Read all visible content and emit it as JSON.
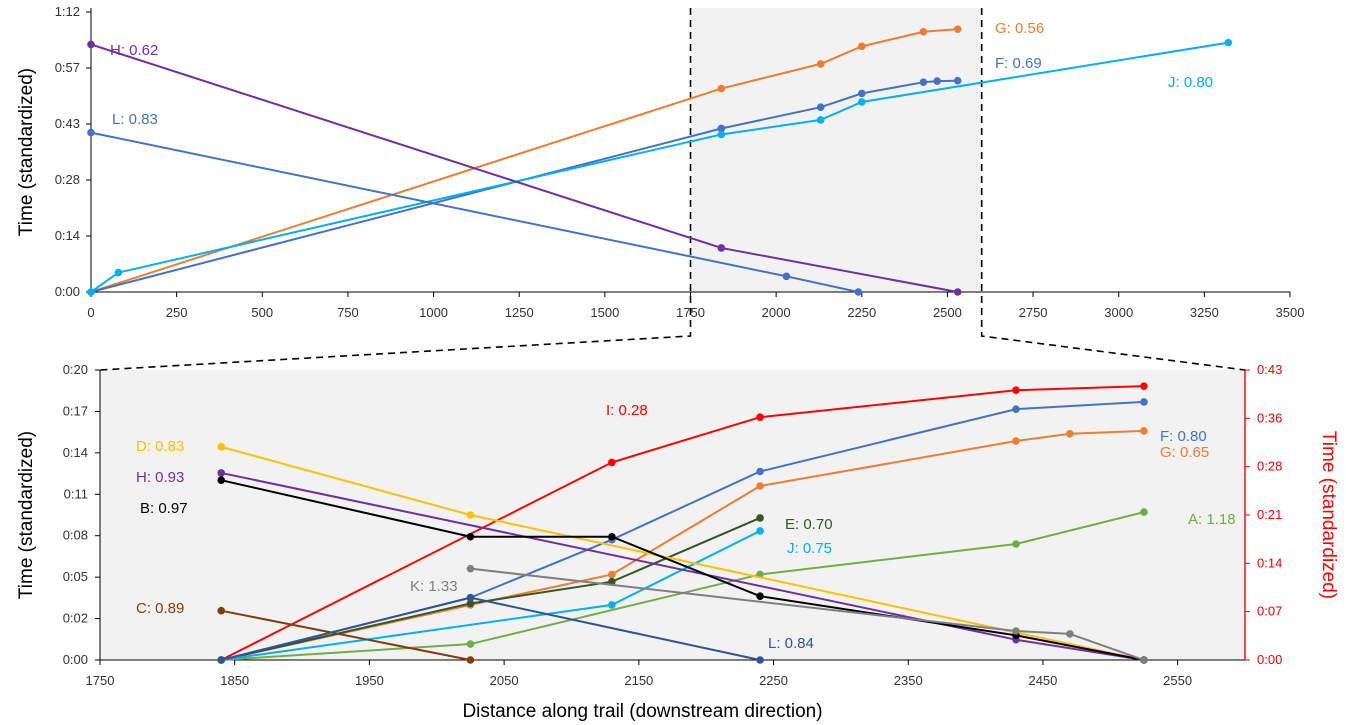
{
  "chart_data": [
    {
      "type": "line",
      "xlabel": "",
      "ylabel": "Time (standardized)",
      "xlim": [
        0,
        3500
      ],
      "ylim_minutes": [
        0,
        75
      ],
      "x_ticks": [
        "0",
        "250",
        "500",
        "750",
        "1000",
        "1250",
        "1500",
        "1750",
        "2000",
        "2250",
        "2500",
        "2750",
        "3000",
        "3250",
        "3500"
      ],
      "y_ticks": [
        "0:00",
        "0:14",
        "0:28",
        "0:43",
        "0:57",
        "1:12"
      ],
      "highlight_region": [
        1750,
        2600
      ],
      "grid": false,
      "legend": "none (series labelled inline)",
      "series": [
        {
          "name": "G",
          "label": "G: 0.56",
          "color": "#ED7D31",
          "x": [
            0,
            1840,
            2130,
            2250,
            2430,
            2530
          ],
          "y": [
            0,
            54.5,
            61.1,
            65.8,
            69.7,
            70.4
          ]
        },
        {
          "name": "F",
          "label": "F: 0.69",
          "color": "#4472C4",
          "x": [
            0,
            1840,
            2130,
            2250,
            2430,
            2470,
            2530
          ],
          "y": [
            0,
            43.8,
            49.5,
            53.2,
            56.2,
            56.5,
            56.6
          ]
        },
        {
          "name": "J",
          "label": "J: 0.80",
          "color": "#00B0F0",
          "x": [
            0,
            80,
            1840,
            2130,
            2250,
            3320
          ],
          "y": [
            0,
            5.2,
            42.2,
            46.1,
            50.9,
            66.8
          ]
        },
        {
          "name": "H",
          "label": "H: 0.62",
          "color": "#7030A0",
          "x": [
            0,
            1840,
            2530
          ],
          "y": [
            66.3,
            11.8,
            0
          ]
        },
        {
          "name": "L",
          "label": "L: 0.83",
          "color": "#4472C4",
          "x": [
            0,
            2030,
            2240
          ],
          "y": [
            42.7,
            4.2,
            0
          ]
        }
      ]
    },
    {
      "type": "line",
      "xlabel": "Distance along trail (downstream direction)",
      "ylabel": "Time (standardized)",
      "ylabel_right": "Time (standardized)",
      "xlim": [
        1750,
        2600
      ],
      "ylim_minutes": [
        0,
        20
      ],
      "ylim_right_minutes": [
        0,
        43
      ],
      "x_ticks": [
        "1750",
        "1850",
        "1950",
        "2050",
        "2150",
        "2250",
        "2350",
        "2450",
        "2550"
      ],
      "y_ticks": [
        "0:00",
        "0:02",
        "0:05",
        "0:08",
        "0:11",
        "0:14",
        "0:17",
        "0:20"
      ],
      "y_ticks_right": [
        "0:00",
        "0:07",
        "0:14",
        "0:21",
        "0:28",
        "0:36",
        "0:43"
      ],
      "grid": false,
      "legend": "none (series labelled inline)",
      "series": [
        {
          "name": "I",
          "label": "I: 0.28",
          "color": "#FF0000",
          "axis": "right",
          "x": [
            1840,
            2130,
            2240,
            2430,
            2525
          ],
          "y": [
            0,
            29.3,
            36.0,
            40.0,
            40.6
          ]
        },
        {
          "name": "F",
          "label": "F: 0.80",
          "color": "#4472C4",
          "x": [
            1840,
            2025,
            2130,
            2240,
            2430,
            2525
          ],
          "y": [
            0,
            4.3,
            8.3,
            13.0,
            17.3,
            17.8
          ]
        },
        {
          "name": "G",
          "label": "G: 0.65",
          "color": "#ED7D31",
          "x": [
            1840,
            2025,
            2130,
            2240,
            2430,
            2470,
            2525
          ],
          "y": [
            0,
            3.8,
            5.9,
            12.0,
            15.1,
            15.6,
            15.8
          ]
        },
        {
          "name": "A",
          "label": "A: 1.18",
          "color": "#70AD47",
          "x": [
            1840,
            2025,
            2240,
            2430,
            2525
          ],
          "y": [
            0,
            1.1,
            5.9,
            8.0,
            10.2
          ]
        },
        {
          "name": "E",
          "label": "E: 0.70",
          "color": "#375623",
          "x": [
            1840,
            2025,
            2130,
            2240
          ],
          "y": [
            0,
            3.9,
            5.4,
            9.8
          ]
        },
        {
          "name": "J",
          "label": "J: 0.75",
          "color": "#00B0F0",
          "x": [
            1840,
            2130,
            2240
          ],
          "y": [
            0,
            3.8,
            8.9
          ]
        },
        {
          "name": "D",
          "label": "D: 0.83",
          "color": "#FFC000",
          "x": [
            1840,
            2025,
            2525
          ],
          "y": [
            14.7,
            10.0,
            0
          ]
        },
        {
          "name": "H",
          "label": "H: 0.93",
          "color": "#7030A0",
          "x": [
            1840,
            2430,
            2525
          ],
          "y": [
            12.9,
            1.4,
            0
          ]
        },
        {
          "name": "B",
          "label": "B: 0.97",
          "color": "#000000",
          "x": [
            1840,
            2025,
            2130,
            2240,
            2430,
            2525
          ],
          "y": [
            12.4,
            8.5,
            8.5,
            4.4,
            1.7,
            0
          ]
        },
        {
          "name": "K",
          "label": "K: 1.33",
          "color": "#7F7F7F",
          "x": [
            2025,
            2430,
            2470,
            2525
          ],
          "y": [
            6.3,
            2.0,
            1.8,
            0
          ]
        },
        {
          "name": "C",
          "label": "C: 0.89",
          "color": "#843C0C",
          "x": [
            1840,
            2025
          ],
          "y": [
            3.4,
            0
          ]
        },
        {
          "name": "L",
          "label": "L: 0.84",
          "color": "#2F5597",
          "x": [
            1840,
            2025,
            2240
          ],
          "y": [
            0,
            4.3,
            0
          ]
        }
      ]
    }
  ]
}
